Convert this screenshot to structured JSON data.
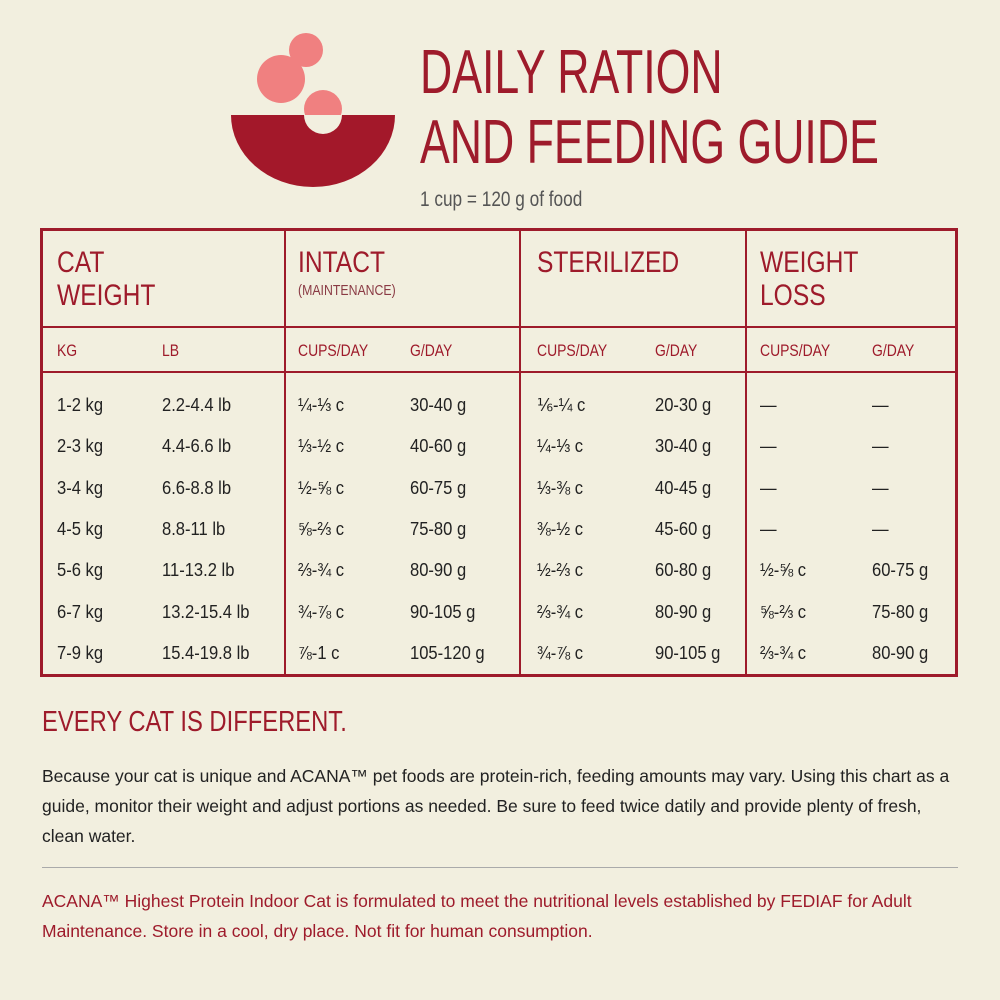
{
  "header": {
    "title_lines": [
      "DAILY RATION",
      "AND FEEDING GUIDE"
    ],
    "subtitle": "1 cup = 120 g of food"
  },
  "table": {
    "groups": [
      {
        "title_lines": [
          "CAT",
          "WEIGHT"
        ]
      },
      {
        "title_lines": [
          "INTACT"
        ],
        "note": "(MAINTENANCE)"
      },
      {
        "title_lines": [
          "STERILIZED"
        ]
      },
      {
        "title_lines": [
          "WEIGHT",
          "LOSS"
        ]
      }
    ],
    "columns": [
      "KG",
      "LB",
      "CUPS/DAY",
      "G/DAY",
      "CUPS/DAY",
      "G/DAY",
      "CUPS/DAY",
      "G/DAY"
    ],
    "rows": [
      [
        "1-2 kg",
        "2.2-4.4 lb",
        "¼-⅓ c",
        "30-40 g",
        "⅙-¼ c",
        "20-30 g",
        "—",
        "—"
      ],
      [
        "2-3 kg",
        "4.4-6.6 lb",
        "⅓-½ c",
        "40-60 g",
        "¼-⅓ c",
        "30-40 g",
        "—",
        "—"
      ],
      [
        "3-4 kg",
        "6.6-8.8 lb",
        "½-⅝ c",
        "60-75 g",
        "⅓-⅜ c",
        "40-45 g",
        "—",
        "—"
      ],
      [
        "4-5 kg",
        "8.8-11 lb",
        "⅝-⅔ c",
        "75-80 g",
        "⅜-½ c",
        "45-60 g",
        "—",
        "—"
      ],
      [
        "5-6 kg",
        "11-13.2 lb",
        "⅔-¾ c",
        "80-90 g",
        "½-⅔ c",
        "60-80 g",
        "½-⅝ c",
        "60-75 g"
      ],
      [
        "6-7 kg",
        "13.2-15.4 lb",
        "¾-⅞ c",
        "90-105 g",
        "⅔-¾ c",
        "80-90 g",
        "⅝-⅔ c",
        "75-80 g"
      ],
      [
        "7-9 kg",
        "15.4-19.8 lb",
        "⅞-1 c",
        "105-120 g",
        "¾-⅞ c",
        "90-105 g",
        "⅔-¾ c",
        "80-90 g"
      ]
    ]
  },
  "note": {
    "heading": "EVERY CAT IS DIFFERENT.",
    "body": "Because your cat is unique and ACANA™ pet foods are protein-rich, feeding amounts may vary. Using this chart as a guide, monitor their weight and adjust portions as needed. Be sure to feed twice datily and provide plenty of fresh, clean water."
  },
  "footer": "ACANA™ Highest Protein Indoor Cat is formulated to meet the nutritional levels established by FEDIAF for Adult Maintenance. Store in a cool, dry place. Not fit for human consumption."
}
